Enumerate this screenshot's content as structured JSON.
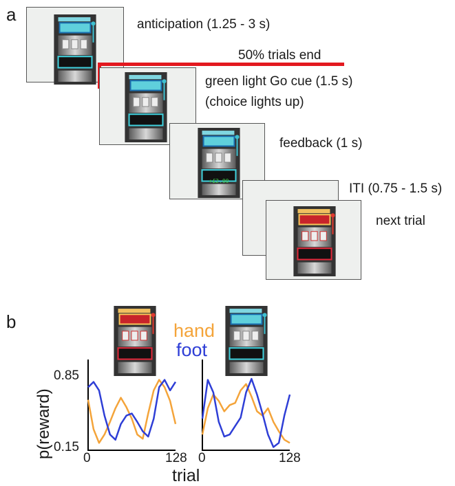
{
  "panel_a": {
    "letter": "a",
    "stages": [
      {
        "label": "anticipation (1.25 - 3 s)"
      },
      {
        "label": "50% trials end"
      },
      {
        "label": "green light Go cue (1.5 s)"
      },
      {
        "label": "(choice lights up)"
      },
      {
        "label": "feedback (1 s)"
      },
      {
        "label": "ITI (0.75 - 1.5 s)"
      },
      {
        "label": "next trial"
      }
    ],
    "feedback_display": "+£2.00"
  },
  "panel_b": {
    "letter": "b",
    "legend": {
      "hand": "hand",
      "foot": "foot"
    },
    "colors": {
      "hand": "#f4a43a",
      "foot": "#2e3ed6",
      "cue_line": "#e3191f"
    }
  },
  "chart_data": [
    {
      "type": "line",
      "ylabel": "p(reward)",
      "xlabel": "trial",
      "ylim": [
        0.15,
        0.85
      ],
      "xlim": [
        0,
        128
      ],
      "yticks": [
        "0.85",
        "0.15"
      ],
      "xticks": [
        "0",
        "128"
      ],
      "series": [
        {
          "name": "hand",
          "x": [
            0,
            8,
            16,
            24,
            32,
            40,
            48,
            56,
            64,
            72,
            80,
            88,
            96,
            104,
            112,
            120,
            128
          ],
          "values": [
            0.63,
            0.35,
            0.22,
            0.3,
            0.42,
            0.55,
            0.65,
            0.56,
            0.45,
            0.3,
            0.26,
            0.5,
            0.72,
            0.82,
            0.75,
            0.62,
            0.4
          ]
        },
        {
          "name": "foot",
          "x": [
            0,
            8,
            16,
            24,
            32,
            40,
            48,
            56,
            64,
            72,
            80,
            88,
            96,
            104,
            112,
            120,
            128
          ],
          "values": [
            0.75,
            0.8,
            0.72,
            0.48,
            0.3,
            0.25,
            0.4,
            0.48,
            0.5,
            0.42,
            0.33,
            0.28,
            0.45,
            0.75,
            0.82,
            0.72,
            0.8
          ]
        }
      ]
    },
    {
      "type": "line",
      "ylabel": "p(reward)",
      "xlabel": "trial",
      "ylim": [
        0.15,
        0.85
      ],
      "xlim": [
        0,
        128
      ],
      "xticks": [
        "0",
        "128"
      ],
      "series": [
        {
          "name": "hand",
          "x": [
            0,
            8,
            16,
            24,
            32,
            40,
            48,
            56,
            64,
            72,
            80,
            88,
            96,
            104,
            112,
            120,
            128
          ],
          "values": [
            0.3,
            0.55,
            0.68,
            0.62,
            0.52,
            0.58,
            0.6,
            0.72,
            0.78,
            0.66,
            0.52,
            0.48,
            0.55,
            0.42,
            0.33,
            0.25,
            0.22
          ]
        },
        {
          "name": "foot",
          "x": [
            0,
            8,
            16,
            24,
            32,
            40,
            48,
            56,
            64,
            72,
            80,
            88,
            96,
            104,
            112,
            120,
            128
          ],
          "values": [
            0.45,
            0.82,
            0.7,
            0.42,
            0.28,
            0.3,
            0.38,
            0.46,
            0.7,
            0.83,
            0.68,
            0.5,
            0.3,
            0.18,
            0.22,
            0.48,
            0.68
          ]
        }
      ]
    }
  ]
}
